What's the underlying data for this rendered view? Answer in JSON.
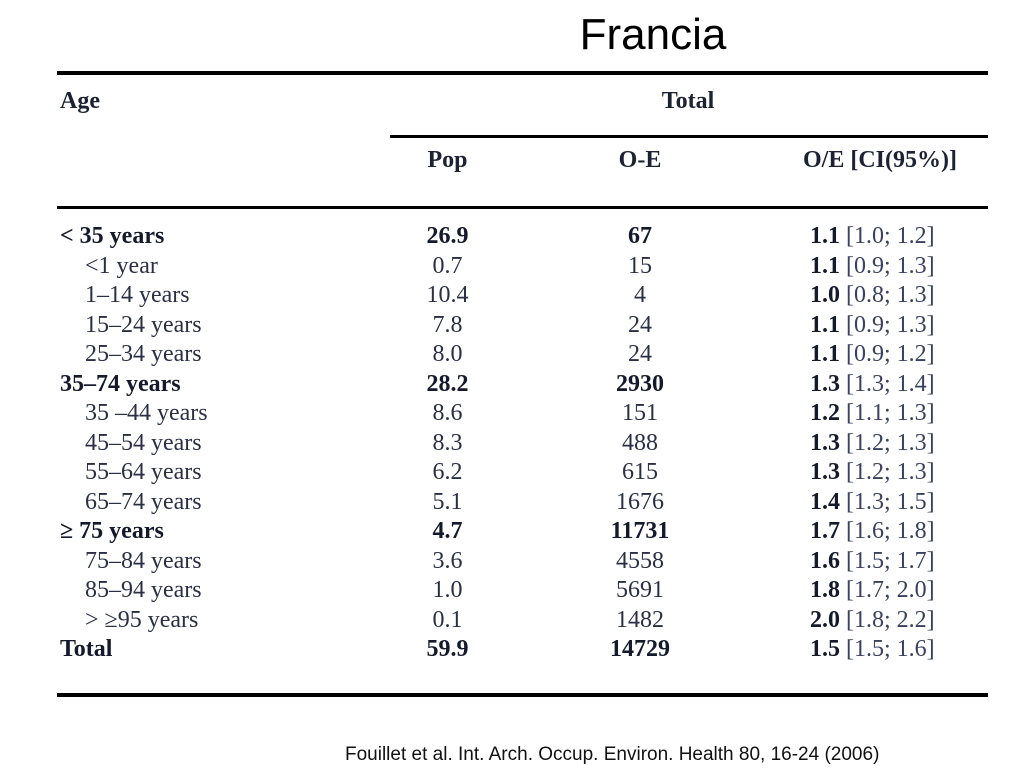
{
  "slide": {
    "title": "Francia",
    "citation": "Fouillet et al. Int. Arch. Occup. Environ. Health 80, 16-24 (2006)"
  },
  "table": {
    "headers": {
      "age": "Age",
      "group": "Total",
      "pop": "Pop",
      "oe_diff": "O-E",
      "oe_ratio": "O/E [CI(95%)]"
    },
    "rows": [
      {
        "age": "< 35 years",
        "pop": "26.9",
        "oe_diff": "67",
        "ratio": "1.1",
        "ci": "[1.0; 1.2]",
        "level": "group"
      },
      {
        "age": "<1 year",
        "pop": "0.7",
        "oe_diff": "15",
        "ratio": "1.1",
        "ci": "[0.9; 1.3]",
        "level": "sub"
      },
      {
        "age": "1–14 years",
        "pop": "10.4",
        "oe_diff": "4",
        "ratio": "1.0",
        "ci": "[0.8; 1.3]",
        "level": "sub"
      },
      {
        "age": "15–24 years",
        "pop": "7.8",
        "oe_diff": "24",
        "ratio": "1.1",
        "ci": "[0.9; 1.3]",
        "level": "sub"
      },
      {
        "age": "25–34 years",
        "pop": "8.0",
        "oe_diff": "24",
        "ratio": "1.1",
        "ci": "[0.9; 1.2]",
        "level": "sub"
      },
      {
        "age": "35–74 years",
        "pop": "28.2",
        "oe_diff": "2930",
        "ratio": "1.3",
        "ci": "[1.3; 1.4]",
        "level": "group"
      },
      {
        "age": "35 –44 years",
        "pop": "8.6",
        "oe_diff": "151",
        "ratio": "1.2",
        "ci": "[1.1; 1.3]",
        "level": "sub"
      },
      {
        "age": "45–54 years",
        "pop": "8.3",
        "oe_diff": "488",
        "ratio": "1.3",
        "ci": "[1.2; 1.3]",
        "level": "sub"
      },
      {
        "age": "55–64 years",
        "pop": "6.2",
        "oe_diff": "615",
        "ratio": "1.3",
        "ci": "[1.2; 1.3]",
        "level": "sub"
      },
      {
        "age": "65–74 years",
        "pop": "5.1",
        "oe_diff": "1676",
        "ratio": "1.4",
        "ci": "[1.3; 1.5]",
        "level": "sub"
      },
      {
        "age": "≥ 75 years",
        "pop": "4.7",
        "oe_diff": "11731",
        "ratio": "1.7",
        "ci": "[1.6; 1.8]",
        "level": "group"
      },
      {
        "age": "75–84 years",
        "pop": "3.6",
        "oe_diff": "4558",
        "ratio": "1.6",
        "ci": "[1.5; 1.7]",
        "level": "sub"
      },
      {
        "age": "85–94 years",
        "pop": "1.0",
        "oe_diff": "5691",
        "ratio": "1.8",
        "ci": "[1.7; 2.0]",
        "level": "sub"
      },
      {
        "age": "> ≥95 years",
        "pop": "0.1",
        "oe_diff": "1482",
        "ratio": "2.0",
        "ci": "[1.8; 2.2]",
        "level": "sub"
      },
      {
        "age": "Total",
        "pop": "59.9",
        "oe_diff": "14729",
        "ratio": "1.5",
        "ci": "[1.5; 1.6]",
        "level": "group"
      }
    ]
  }
}
